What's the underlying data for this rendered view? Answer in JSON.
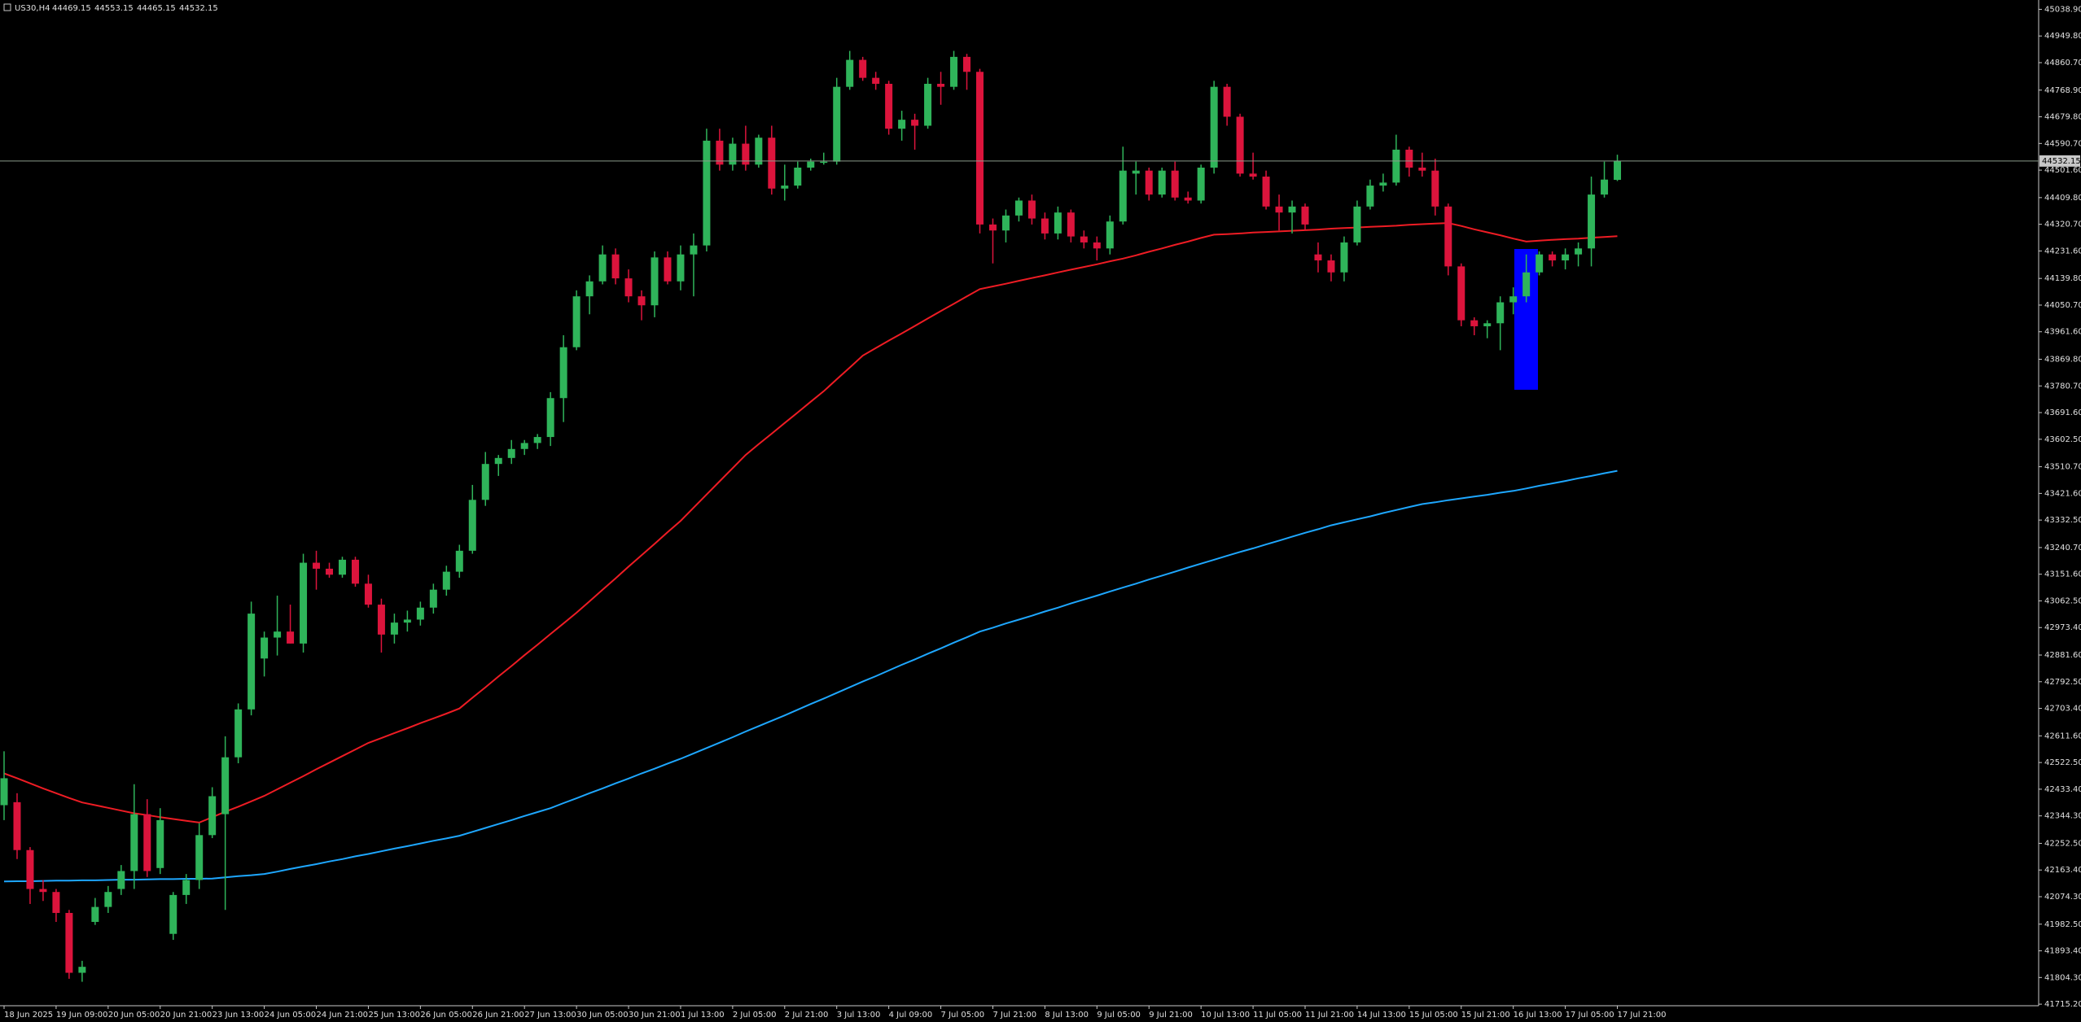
{
  "chart_data": {
    "type": "candlestick",
    "title": "US30,H4",
    "categories": [
      "18 Jun 2025",
      null,
      null,
      null,
      "19 Jun 09:00",
      null,
      null,
      null,
      "20 Jun 05:00",
      null,
      null,
      null,
      "20 Jun 21:00",
      null,
      null,
      null,
      "23 Jun 13:00",
      null,
      null,
      null,
      "24 Jun 05:00",
      null,
      null,
      null,
      "24 Jun 21:00",
      null,
      null,
      null,
      "25 Jun 13:00",
      null,
      null,
      null,
      "26 Jun 05:00",
      null,
      null,
      null,
      "26 Jun 21:00",
      null,
      null,
      null,
      "27 Jun 13:00",
      null,
      null,
      null,
      "30 Jun 05:00",
      null,
      null,
      null,
      "30 Jun 21:00",
      null,
      null,
      null,
      "1 Jul 13:00",
      null,
      null,
      null,
      "2 Jul 05:00",
      null,
      null,
      null,
      "2 Jul 21:00",
      null,
      null,
      null,
      "3 Jul 13:00",
      null,
      null,
      null,
      "4 Jul 09:00",
      null,
      null,
      null,
      "7 Jul 05:00",
      null,
      null,
      null,
      "7 Jul 21:00",
      null,
      null,
      null,
      "8 Jul 13:00",
      null,
      null,
      null,
      "9 Jul 05:00",
      null,
      null,
      null,
      "9 Jul 21:00",
      null,
      null,
      null,
      "10 Jul 13:00",
      null,
      null,
      null,
      "11 Jul 05:00",
      null,
      null,
      null,
      "11 Jul 21:00",
      null,
      null,
      null,
      "14 Jul 13:00",
      null,
      null,
      null,
      "15 Jul 05:00",
      null,
      null,
      null,
      "15 Jul 21:00",
      null,
      null,
      null,
      "16 Jul 13:00",
      null,
      null,
      null,
      "17 Jul 05:00",
      null,
      null,
      null,
      "17 Jul 21:00"
    ],
    "candles": [
      [
        42380,
        42560,
        42330,
        42470
      ],
      [
        42390,
        42420,
        42200,
        42230
      ],
      [
        42230,
        42240,
        42050,
        42100
      ],
      [
        42100,
        42130,
        42060,
        42090
      ],
      [
        42090,
        42100,
        41990,
        42020
      ],
      [
        42020,
        42030,
        41800,
        41820
      ],
      [
        41820,
        41860,
        41790,
        41840
      ],
      [
        41990,
        42070,
        41980,
        42040
      ],
      [
        42040,
        42110,
        42020,
        42090
      ],
      [
        42100,
        42180,
        42080,
        42160
      ],
      [
        42160,
        42450,
        42100,
        42350
      ],
      [
        42350,
        42400,
        42140,
        42160
      ],
      [
        42170,
        42370,
        42150,
        42330
      ],
      [
        41950,
        42090,
        41930,
        42080
      ],
      [
        42080,
        42150,
        42050,
        42130
      ],
      [
        42130,
        42320,
        42100,
        42280
      ],
      [
        42280,
        42440,
        42270,
        42410
      ],
      [
        42350,
        42610,
        42030,
        42540
      ],
      [
        42540,
        42720,
        42520,
        42700
      ],
      [
        42700,
        43060,
        42680,
        43020
      ],
      [
        42870,
        42960,
        42810,
        42940
      ],
      [
        42940,
        43080,
        42880,
        42960
      ],
      [
        42960,
        43050,
        42920,
        42920
      ],
      [
        42920,
        43220,
        42890,
        43190
      ],
      [
        43190,
        43230,
        43100,
        43170
      ],
      [
        43170,
        43190,
        43140,
        43150
      ],
      [
        43150,
        43210,
        43140,
        43200
      ],
      [
        43200,
        43210,
        43110,
        43120
      ],
      [
        43120,
        43150,
        43040,
        43050
      ],
      [
        43050,
        43070,
        42890,
        42950
      ],
      [
        42950,
        43020,
        42920,
        42990
      ],
      [
        42990,
        43030,
        42960,
        43000
      ],
      [
        43000,
        43060,
        42980,
        43040
      ],
      [
        43040,
        43120,
        43020,
        43100
      ],
      [
        43100,
        43180,
        43080,
        43160
      ],
      [
        43160,
        43250,
        43140,
        43230
      ],
      [
        43230,
        43450,
        43220,
        43400
      ],
      [
        43400,
        43560,
        43380,
        43520
      ],
      [
        43520,
        43550,
        43480,
        43540
      ],
      [
        43540,
        43600,
        43520,
        43570
      ],
      [
        43570,
        43600,
        43550,
        43590
      ],
      [
        43590,
        43620,
        43570,
        43610
      ],
      [
        43610,
        43760,
        43580,
        43740
      ],
      [
        43740,
        43950,
        43660,
        43910
      ],
      [
        43910,
        44100,
        43900,
        44080
      ],
      [
        44080,
        44150,
        44020,
        44130
      ],
      [
        44130,
        44250,
        44120,
        44220
      ],
      [
        44220,
        44240,
        44120,
        44140
      ],
      [
        44140,
        44170,
        44060,
        44080
      ],
      [
        44080,
        44100,
        44000,
        44050
      ],
      [
        44050,
        44230,
        44010,
        44210
      ],
      [
        44210,
        44230,
        44120,
        44130
      ],
      [
        44130,
        44250,
        44100,
        44220
      ],
      [
        44220,
        44290,
        44080,
        44250
      ],
      [
        44250,
        44640,
        44230,
        44600
      ],
      [
        44600,
        44640,
        44500,
        44520
      ],
      [
        44520,
        44610,
        44500,
        44590
      ],
      [
        44590,
        44650,
        44500,
        44520
      ],
      [
        44520,
        44620,
        44510,
        44610
      ],
      [
        44610,
        44650,
        44420,
        44440
      ],
      [
        44440,
        44520,
        44400,
        44450
      ],
      [
        44450,
        44530,
        44440,
        44510
      ],
      [
        44510,
        44540,
        44500,
        44530
      ],
      [
        44530,
        44560,
        44520,
        44530
      ],
      [
        44530,
        44810,
        44520,
        44780
      ],
      [
        44780,
        44900,
        44770,
        44870
      ],
      [
        44870,
        44880,
        44800,
        44810
      ],
      [
        44810,
        44830,
        44770,
        44790
      ],
      [
        44790,
        44800,
        44620,
        44640
      ],
      [
        44640,
        44700,
        44600,
        44670
      ],
      [
        44670,
        44690,
        44570,
        44650
      ],
      [
        44650,
        44810,
        44640,
        44790
      ],
      [
        44790,
        44830,
        44720,
        44780
      ],
      [
        44780,
        44900,
        44770,
        44880
      ],
      [
        44880,
        44890,
        44770,
        44830
      ],
      [
        44830,
        44840,
        44290,
        44320
      ],
      [
        44320,
        44340,
        44190,
        44300
      ],
      [
        44300,
        44370,
        44260,
        44350
      ],
      [
        44350,
        44410,
        44330,
        44400
      ],
      [
        44400,
        44420,
        44320,
        44340
      ],
      [
        44340,
        44360,
        44270,
        44290
      ],
      [
        44290,
        44380,
        44270,
        44360
      ],
      [
        44360,
        44370,
        44260,
        44280
      ],
      [
        44280,
        44300,
        44240,
        44260
      ],
      [
        44260,
        44280,
        44200,
        44240
      ],
      [
        44240,
        44350,
        44220,
        44330
      ],
      [
        44330,
        44580,
        44320,
        44500
      ],
      [
        44490,
        44530,
        44420,
        44500
      ],
      [
        44500,
        44510,
        44400,
        44420
      ],
      [
        44420,
        44510,
        44410,
        44500
      ],
      [
        44500,
        44530,
        44400,
        44410
      ],
      [
        44410,
        44430,
        44390,
        44400
      ],
      [
        44400,
        44520,
        44390,
        44510
      ],
      [
        44510,
        44800,
        44490,
        44780
      ],
      [
        44780,
        44790,
        44650,
        44680
      ],
      [
        44680,
        44690,
        44480,
        44490
      ],
      [
        44490,
        44560,
        44470,
        44480
      ],
      [
        44480,
        44500,
        44370,
        44380
      ],
      [
        44380,
        44420,
        44300,
        44360
      ],
      [
        44360,
        44400,
        44290,
        44380
      ],
      [
        44380,
        44390,
        44300,
        44320
      ],
      [
        44220,
        44260,
        44160,
        44200
      ],
      [
        44200,
        44220,
        44130,
        44160
      ],
      [
        44160,
        44280,
        44130,
        44260
      ],
      [
        44260,
        44400,
        44250,
        44380
      ],
      [
        44380,
        44470,
        44370,
        44450
      ],
      [
        44450,
        44490,
        44430,
        44460
      ],
      [
        44460,
        44620,
        44450,
        44570
      ],
      [
        44570,
        44580,
        44480,
        44510
      ],
      [
        44510,
        44560,
        44480,
        44500
      ],
      [
        44500,
        44540,
        44350,
        44380
      ],
      [
        44380,
        44390,
        44150,
        44180
      ],
      [
        44180,
        44190,
        43980,
        44000
      ],
      [
        44000,
        44010,
        43950,
        43980
      ],
      [
        43980,
        44000,
        43940,
        43990
      ],
      [
        43990,
        44080,
        43900,
        44060
      ],
      [
        44060,
        44110,
        44020,
        44080
      ],
      [
        44080,
        44220,
        44060,
        44160
      ],
      [
        44160,
        44230,
        44150,
        44220
      ],
      [
        44220,
        44230,
        44180,
        44200
      ],
      [
        44200,
        44240,
        44170,
        44220
      ],
      [
        44220,
        44260,
        44180,
        44240
      ],
      [
        44240,
        44480,
        44180,
        44420
      ],
      [
        44420,
        44530,
        44410,
        44470
      ],
      [
        44469.15,
        44553.15,
        44465.15,
        44532.15
      ]
    ],
    "up_color": "#2fb45a",
    "down_color": "#dc143c",
    "series": [
      {
        "color": "#ee1c24",
        "values": [
          42486,
          42470,
          42453,
          42436,
          42420,
          42404,
          42389,
          42380,
          42371,
          42362,
          42353,
          42347,
          42340,
          42334,
          42328,
          42322,
          42340,
          42358,
          42375,
          42393,
          42411,
          42433,
          42455,
          42477,
          42500,
          42522,
          42544,
          42566,
          42588,
          42604,
          42621,
          42637,
          42654,
          42670,
          42686,
          42703,
          42739,
          42774,
          42810,
          42845,
          42881,
          42916,
          42952,
          42987,
          43023,
          43061,
          43100,
          43138,
          43177,
          43215,
          43253,
          43292,
          43330,
          43374,
          43418,
          43462,
          43506,
          43550,
          43586,
          43621,
          43657,
          43692,
          43728,
          43763,
          43803,
          43842,
          43882,
          43907,
          43932,
          43956,
          43981,
          44006,
          44031,
          44055,
          44080,
          44104,
          44113,
          44122,
          44132,
          44141,
          44150,
          44160,
          44169,
          44178,
          44187,
          44197,
          44206,
          44217,
          44229,
          44240,
          44252,
          44263,
          44275,
          44286,
          44288,
          44290,
          44293,
          44295,
          44297,
          44299,
          44301,
          44303,
          44306,
          44308,
          44310,
          44312,
          44314,
          44316,
          44319,
          44321,
          44323,
          44325,
          44315,
          44304,
          44294,
          44284,
          44273,
          44263,
          44266,
          44269,
          44271,
          44273,
          44276,
          44278,
          44281
        ]
      },
      {
        "color": "#1ea7ff",
        "values": [
          42125,
          42126,
          42126,
          42127,
          42128,
          42128,
          42129,
          42129,
          42130,
          42131,
          42131,
          42132,
          42133,
          42133,
          42134,
          42134,
          42135,
          42139,
          42143,
          42146,
          42150,
          42158,
          42167,
          42175,
          42183,
          42192,
          42200,
          42209,
          42217,
          42226,
          42235,
          42243,
          42252,
          42261,
          42269,
          42278,
          42291,
          42304,
          42317,
          42330,
          42344,
          42357,
          42370,
          42387,
          42403,
          42420,
          42436,
          42453,
          42469,
          42486,
          42502,
          42519,
          42535,
          42553,
          42571,
          42589,
          42607,
          42626,
          42644,
          42662,
          42680,
          42699,
          42718,
          42736,
          42755,
          42774,
          42793,
          42811,
          42830,
          42849,
          42867,
          42886,
          42904,
          42923,
          42941,
          42960,
          42973,
          42987,
          43000,
          43013,
          43027,
          43040,
          43054,
          43067,
          43080,
          43094,
          43107,
          43120,
          43134,
          43147,
          43160,
          43174,
          43187,
          43200,
          43213,
          43226,
          43238,
          43251,
          43264,
          43277,
          43290,
          43302,
          43315,
          43325,
          43335,
          43345,
          43356,
          43366,
          43376,
          43386,
          43392,
          43399,
          43405,
          43411,
          43417,
          43424,
          43430,
          43438,
          43447,
          43455,
          43463,
          43472,
          43480,
          43489,
          43497
        ]
      }
    ],
    "ylim": [
      41710,
      45070
    ],
    "yticks": [
      {
        "value": 45038.9,
        "label": "45038.90"
      },
      {
        "value": 44949.8,
        "label": "44949.80"
      },
      {
        "value": 44860.7,
        "label": "44860.70"
      },
      {
        "value": 44768.9,
        "label": "44768.90"
      },
      {
        "value": 44679.8,
        "label": "44679.80"
      },
      {
        "value": 44590.7,
        "label": "44590.70"
      },
      {
        "value": 44501.6,
        "label": "44501.60"
      },
      {
        "value": 44409.8,
        "label": "44409.80"
      },
      {
        "value": 44320.7,
        "label": "44320.70"
      },
      {
        "value": 44231.6,
        "label": "44231.60"
      },
      {
        "value": 44139.8,
        "label": "44139.80"
      },
      {
        "value": 44050.7,
        "label": "44050.70"
      },
      {
        "value": 43961.6,
        "label": "43961.60"
      },
      {
        "value": 43869.8,
        "label": "43869.80"
      },
      {
        "value": 43780.7,
        "label": "43780.70"
      },
      {
        "value": 43691.6,
        "label": "43691.60"
      },
      {
        "value": 43602.5,
        "label": "43602.50"
      },
      {
        "value": 43510.7,
        "label": "43510.70"
      },
      {
        "value": 43421.6,
        "label": "43421.60"
      },
      {
        "value": 43332.5,
        "label": "43332.50"
      },
      {
        "value": 43240.7,
        "label": "43240.70"
      },
      {
        "value": 43151.6,
        "label": "43151.60"
      },
      {
        "value": 43062.5,
        "label": "43062.50"
      },
      {
        "value": 42973.4,
        "label": "42973.40"
      },
      {
        "value": 42881.6,
        "label": "42881.60"
      },
      {
        "value": 42792.5,
        "label": "42792.50"
      },
      {
        "value": 42703.4,
        "label": "42703.40"
      },
      {
        "value": 42611.6,
        "label": "42611.60"
      },
      {
        "value": 42522.5,
        "label": "42522.50"
      },
      {
        "value": 42433.4,
        "label": "42433.40"
      },
      {
        "value": 42344.3,
        "label": "42344.30"
      },
      {
        "value": 42252.5,
        "label": "42252.50"
      },
      {
        "value": 42163.4,
        "label": "42163.40"
      },
      {
        "value": 42074.3,
        "label": "42074.30"
      },
      {
        "value": 41982.5,
        "label": "41982.50"
      },
      {
        "value": 41893.4,
        "label": "41893.40"
      },
      {
        "value": 41804.3,
        "label": "41804.30"
      },
      {
        "value": 41715.2,
        "label": "41715.20"
      }
    ],
    "grid": false
  }
}
